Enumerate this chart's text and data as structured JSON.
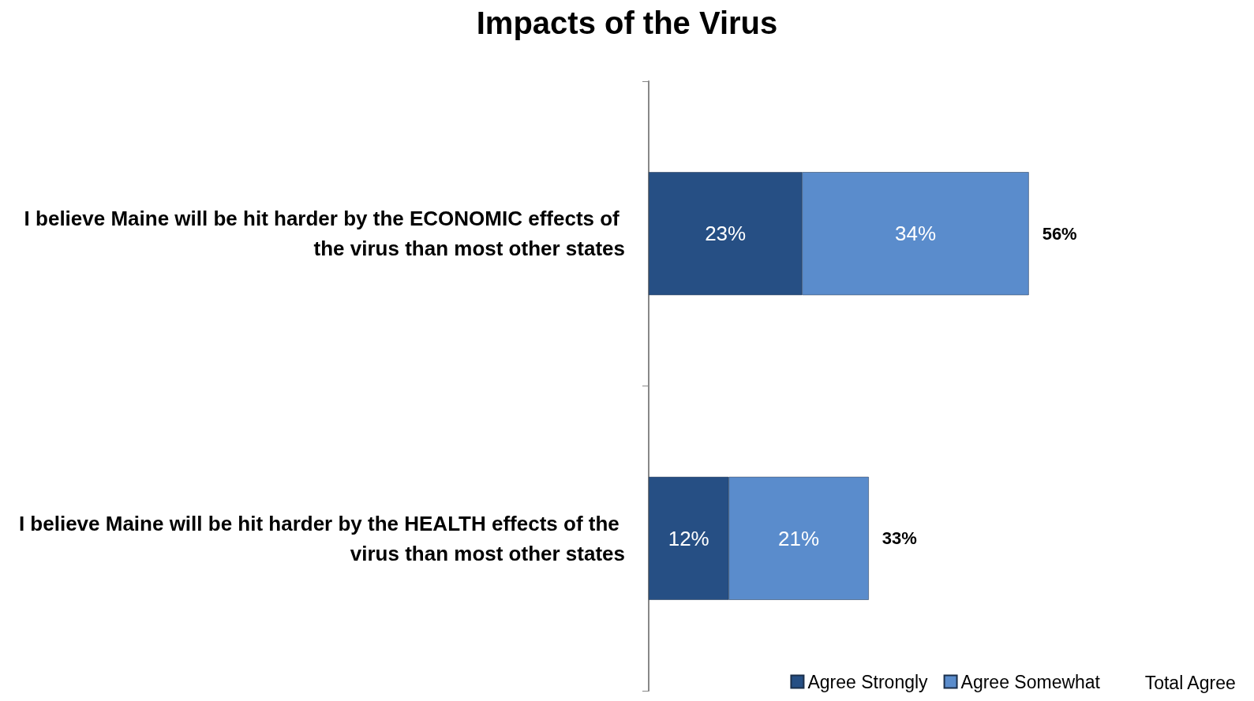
{
  "chart_data": {
    "type": "bar",
    "orientation": "horizontal",
    "stacked": true,
    "title": "Impacts of the Virus",
    "categories": [
      "I believe Maine will be hit harder by the ECONOMIC effects of the virus than most other states",
      "I believe Maine will be hit harder by the HEALTH effects of the virus than most other states"
    ],
    "series": [
      {
        "name": "Agree Strongly",
        "color": "#264f84",
        "values": [
          23,
          12
        ],
        "value_labels": [
          "23%",
          "12%"
        ]
      },
      {
        "name": "Agree Somewhat",
        "color": "#5a8ccc",
        "values": [
          34,
          21
        ],
        "value_labels": [
          "34%",
          "21%"
        ]
      }
    ],
    "totals": [
      "56%",
      "33%"
    ],
    "legend": "bottom right",
    "annotations": [
      "Total Agree"
    ]
  }
}
